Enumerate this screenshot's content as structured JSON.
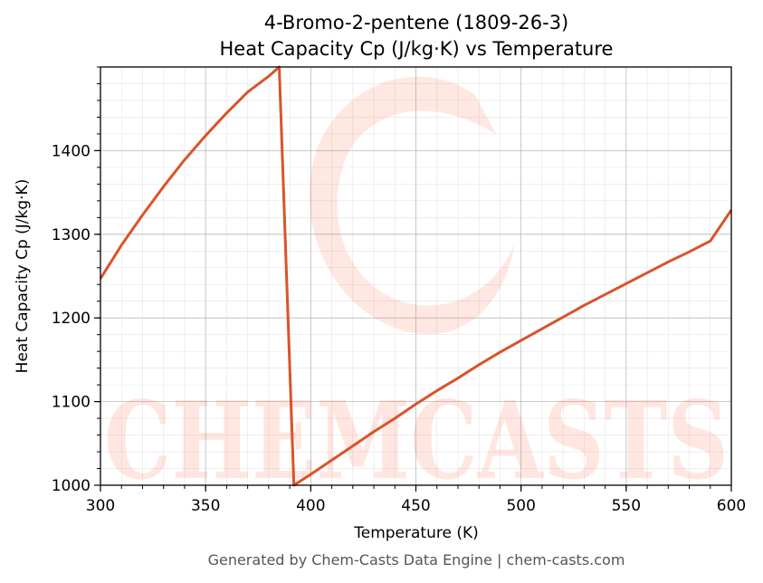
{
  "chart_data": {
    "type": "line",
    "title": "4-Bromo-2-pentene (1809-26-3)",
    "subtitle": "Heat Capacity Cp (J/kg·K) vs Temperature",
    "xlabel": "Temperature (K)",
    "ylabel": "Heat Capacity Cp (J/kg·K)",
    "xlim": [
      300,
      600
    ],
    "ylim": [
      1000,
      1500
    ],
    "xticks": [
      300,
      350,
      400,
      450,
      500,
      550,
      600
    ],
    "yticks": [
      1000,
      1100,
      1200,
      1300,
      1400
    ],
    "grid": true,
    "series": [
      {
        "color": "#d9532b",
        "x": [
          300,
          310,
          320,
          330,
          340,
          350,
          360,
          370,
          380,
          385,
          392,
          400,
          410,
          420,
          430,
          440,
          450,
          460,
          470,
          480,
          490,
          500,
          510,
          520,
          530,
          540,
          550,
          560,
          570,
          580,
          590,
          600
        ],
        "y": [
          1247,
          1287,
          1323,
          1357,
          1389,
          1418,
          1445,
          1470,
          1489,
          1500,
          1000,
          1013,
          1030,
          1047,
          1064,
          1080,
          1097,
          1113,
          1128,
          1144,
          1159,
          1173,
          1187,
          1201,
          1215,
          1228,
          1241,
          1254,
          1267,
          1279,
          1292,
          1329
        ]
      }
    ]
  },
  "watermark": {
    "text": "CHEMCASTS",
    "color": "#ff6a4d"
  },
  "footer": "Generated by Chem-Casts Data Engine | chem-casts.com"
}
